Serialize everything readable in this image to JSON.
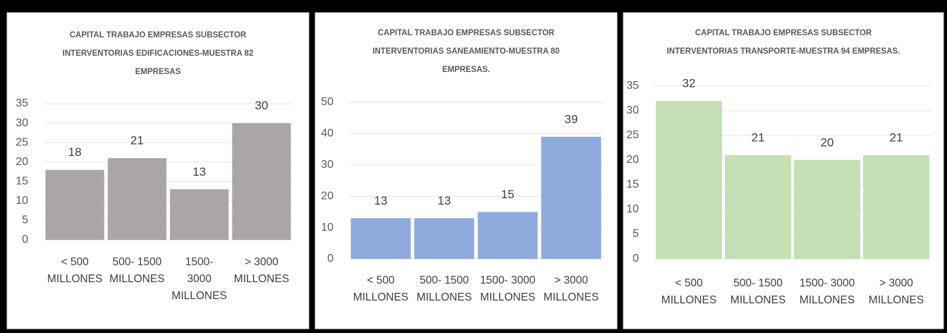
{
  "chart_data": [
    {
      "type": "bar",
      "title": [
        "CAPITAL TRABAJO EMPRESAS SUBSECTOR",
        "INTERVENTORIAS EDIFICACIONES-MUESTRA 82",
        "EMPRESAS"
      ],
      "categories": [
        [
          "< 500",
          "MILLONES"
        ],
        [
          "500- 1500",
          "MILLONES"
        ],
        [
          "1500-",
          "3000",
          "MILLONES"
        ],
        [
          "> 3000",
          "MILLONES"
        ]
      ],
      "values": [
        18,
        21,
        13,
        30
      ],
      "color": "#a9a6a5",
      "ylim": [
        0,
        35
      ],
      "yticks": [
        0,
        5,
        10,
        15,
        20,
        25,
        30,
        35
      ],
      "grid": true
    },
    {
      "type": "bar",
      "title": [
        "CAPITAL TRABAJO EMPRESAS SUBSECTOR",
        "INTERVENTORIAS SANEAMIENTO-MUESTRA 80",
        "EMPRESAS."
      ],
      "categories": [
        [
          "< 500",
          "MILLONES"
        ],
        [
          "500- 1500",
          "MILLONES"
        ],
        [
          "1500- 3000",
          "MILLONES"
        ],
        [
          "> 3000",
          "MILLONES"
        ]
      ],
      "values": [
        13,
        13,
        15,
        39
      ],
      "color": "#8faadc",
      "ylim": [
        0,
        50
      ],
      "yticks": [
        0,
        10,
        20,
        30,
        40,
        50
      ],
      "grid": true
    },
    {
      "type": "bar",
      "title": [
        "CAPITAL TRABAJO EMPRESAS SUBSECTOR",
        "INTERVENTORIAS TRANSPORTE-MUESTRA 94 EMPRESAS."
      ],
      "categories": [
        [
          "< 500",
          "MILLONES"
        ],
        [
          "500- 1500",
          "MILLONES"
        ],
        [
          "1500- 3000",
          "MILLONES"
        ],
        [
          "> 3000",
          "MILLONES"
        ]
      ],
      "values": [
        32,
        21,
        20,
        21
      ],
      "color": "#c5e0b4",
      "ylim": [
        0,
        35
      ],
      "yticks": [
        0,
        5,
        10,
        15,
        20,
        25,
        30,
        35
      ],
      "grid": true
    }
  ]
}
